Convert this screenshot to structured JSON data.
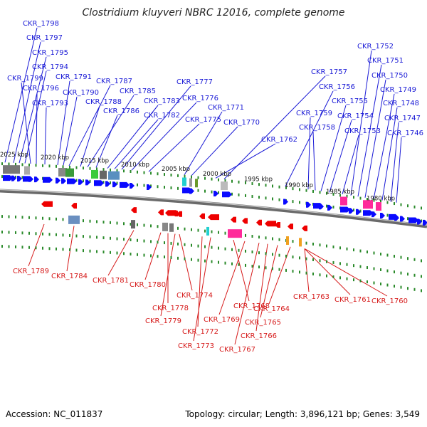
{
  "title": "Clostridium kluyveri NBRC 12016, complete genome",
  "footer": {
    "accession": "Accession: NC_011837",
    "summary": "Topology: circular; Length: 3,896,121 bp; Genes: 3,549"
  },
  "colors": {
    "forward_label": "#1a1ad6",
    "reverse_label": "#d61a1a",
    "forward_gene": "#0a0aff",
    "reverse_gene": "#ee0000",
    "track_dots": "#2a8a2a",
    "backbone": "#777777"
  },
  "scale_ticks": [
    "2025 kbp",
    "2020 kbp",
    "2015 kbp",
    "2010 kbp",
    "2005 kbp",
    "2000 kbp",
    "1995 kbp",
    "1990 kbp",
    "1985 kbp",
    "1980 kbp"
  ],
  "forward_genes": [
    "CKR_1798",
    "CKR_1797",
    "CKR_1795",
    "CKR_1794",
    "CKR_1799",
    "CKR_1796",
    "CKR_1793",
    "CKR_1791",
    "CKR_1790",
    "CKR_1787",
    "CKR_1788",
    "CKR_1785",
    "CKR_1786",
    "CKR_1783",
    "CKR_1782",
    "CKR_1777",
    "CKR_1776",
    "CKR_1775",
    "CKR_1771",
    "CKR_1770",
    "CKR_1762",
    "CKR_1757",
    "CKR_1756",
    "CKR_1759",
    "CKR_1758",
    "CKR_1755",
    "CKR_1754",
    "CKR_1753",
    "CKR_1752",
    "CKR_1751",
    "CKR_1750",
    "CKR_1749",
    "CKR_1748",
    "CKR_1747",
    "CKR_1746"
  ],
  "reverse_genes": [
    "CKR_1789",
    "CKR_1784",
    "CKR_1781",
    "CKR_1780",
    "CKR_1778",
    "CKR_1779",
    "CKR_1774",
    "CKR_1772",
    "CKR_1773",
    "CKR_1768",
    "CKR_1769",
    "CKR_1767",
    "CKR_1766",
    "CKR_1765",
    "CKR_1764",
    "CKR_1763",
    "CKR_1761",
    "CKR_1760"
  ]
}
